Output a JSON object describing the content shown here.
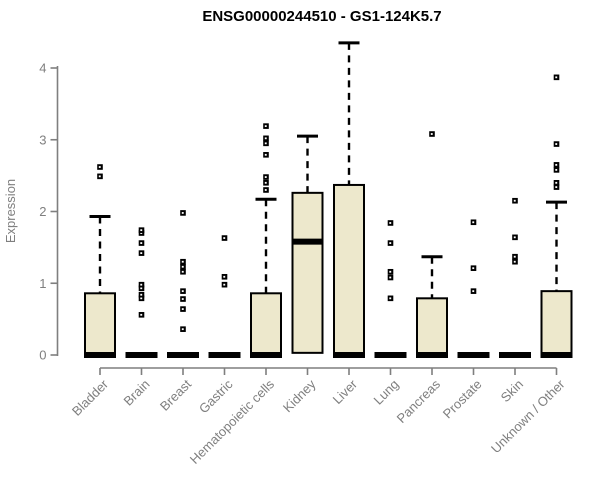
{
  "title": "ENSG00000244510 - GS1-124K5.7",
  "colors": {
    "background": "#ffffff",
    "box_fill": "#ede8cc",
    "box_stroke": "#000000",
    "median": "#000000",
    "whisker": "#000000",
    "outlier": "#000000",
    "axis": "#7f7f7f",
    "tick_label": "#7f7f7f",
    "title": "#000000"
  },
  "chart_data": {
    "type": "boxplot",
    "title": "ENSG00000244510 - GS1-124K5.7",
    "xlabel": "",
    "ylabel": "Expression",
    "ylim": [
      0,
      4.4
    ],
    "yticks": [
      0,
      1,
      2,
      3,
      4
    ],
    "grid": false,
    "legend": false,
    "categories": [
      "Bladder",
      "Brain",
      "Breast",
      "Gastric",
      "Hematopoietic cells",
      "Kidney",
      "Liver",
      "Lung",
      "Pancreas",
      "Prostate",
      "Skin",
      "Unknown / Other"
    ],
    "series": [
      {
        "category": "Bladder",
        "min": 0,
        "q1": 0,
        "median": 0,
        "q3": 0.86,
        "whisker_high": 1.93,
        "outliers": [
          2.49,
          2.62
        ]
      },
      {
        "category": "Brain",
        "min": 0,
        "q1": 0,
        "median": 0,
        "q3": 0,
        "whisker_high": 0,
        "outliers": [
          0.56,
          0.79,
          0.84,
          0.93,
          0.98,
          1.42,
          1.56,
          1.7,
          1.74
        ]
      },
      {
        "category": "Breast",
        "min": 0,
        "q1": 0,
        "median": 0,
        "q3": 0,
        "whisker_high": 0,
        "outliers": [
          0.36,
          0.64,
          0.78,
          0.89,
          1.16,
          1.23,
          1.3,
          1.98
        ]
      },
      {
        "category": "Gastric",
        "min": 0,
        "q1": 0,
        "median": 0,
        "q3": 0,
        "whisker_high": 0,
        "outliers": [
          0.98,
          1.09,
          1.63
        ]
      },
      {
        "category": "Hematopoietic cells",
        "min": 0,
        "q1": 0,
        "median": 0,
        "q3": 0.86,
        "whisker_high": 2.17,
        "outliers": [
          2.3,
          2.4,
          2.48,
          2.79,
          2.95,
          3.02,
          3.19
        ]
      },
      {
        "category": "Kidney",
        "min": 0.03,
        "q1": 0.03,
        "median": 1.58,
        "q3": 2.26,
        "whisker_high": 3.05,
        "outliers": []
      },
      {
        "category": "Liver",
        "min": 0,
        "q1": 0,
        "median": 0,
        "q3": 2.37,
        "whisker_high": 4.35,
        "outliers": []
      },
      {
        "category": "Lung",
        "min": 0,
        "q1": 0,
        "median": 0,
        "q3": 0,
        "whisker_high": 0,
        "outliers": [
          0.79,
          1.08,
          1.16,
          1.56,
          1.84
        ]
      },
      {
        "category": "Pancreas",
        "min": 0,
        "q1": 0,
        "median": 0,
        "q3": 0.79,
        "whisker_high": 1.37,
        "outliers": [
          3.08
        ]
      },
      {
        "category": "Prostate",
        "min": 0,
        "q1": 0,
        "median": 0,
        "q3": 0,
        "whisker_high": 0,
        "outliers": [
          0.89,
          1.21,
          1.85
        ]
      },
      {
        "category": "Skin",
        "min": 0,
        "q1": 0,
        "median": 0,
        "q3": 0,
        "whisker_high": 0,
        "outliers": [
          1.3,
          1.37,
          1.64,
          2.15
        ]
      },
      {
        "category": "Unknown / Other",
        "min": 0,
        "q1": 0,
        "median": 0,
        "q3": 0.89,
        "whisker_high": 2.13,
        "outliers": [
          2.34,
          2.4,
          2.58,
          2.65,
          2.94,
          3.87
        ]
      }
    ]
  }
}
